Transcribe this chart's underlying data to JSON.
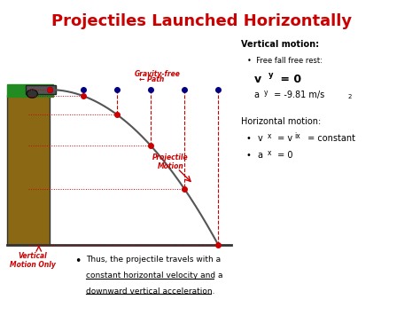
{
  "title": "Projectiles Launched Horizontally",
  "title_color": "#cc0000",
  "bg_color": "#ffffff",
  "vm_title": "Vertical motion:",
  "vm_line1": "Free fall free rest:",
  "vm_vy": "v",
  "vm_vy_sub": "y",
  "vm_vy_rest": " = 0",
  "vm_ay": "a",
  "vm_ay_sub": "y",
  "vm_ay_rest": " = -9.81 m/s",
  "vm_ay_sup": "2",
  "hm_title": "Horizontal motion:",
  "hm_line1a": "v",
  "hm_line1a_sub": "x",
  "hm_line1b": " = v",
  "hm_line1b_sub": "ix",
  "hm_line1c": " = constant",
  "hm_line2a": "a",
  "hm_line2a_sub": "x",
  "hm_line2b": " = 0",
  "bt_line1": "Thus, the projectile travels with a",
  "bt_line2": "constant horizontal velocity",
  "bt_line2b": " and a",
  "bt_line3": "downward vertical acceleration",
  "bt_line3b": ".",
  "lbl_gravity_free": "Gravity-free",
  "lbl_path": "← Path",
  "lbl_proj_motion": "Projectile\nMotion",
  "lbl_vert_motion": "Vertical\nMotion Only",
  "dot_color": "#000080",
  "red_color": "#cc0000",
  "path_color": "#555555",
  "cliff_color": "#8B6914",
  "green_color": "#228B22",
  "ground_color": "#333333"
}
